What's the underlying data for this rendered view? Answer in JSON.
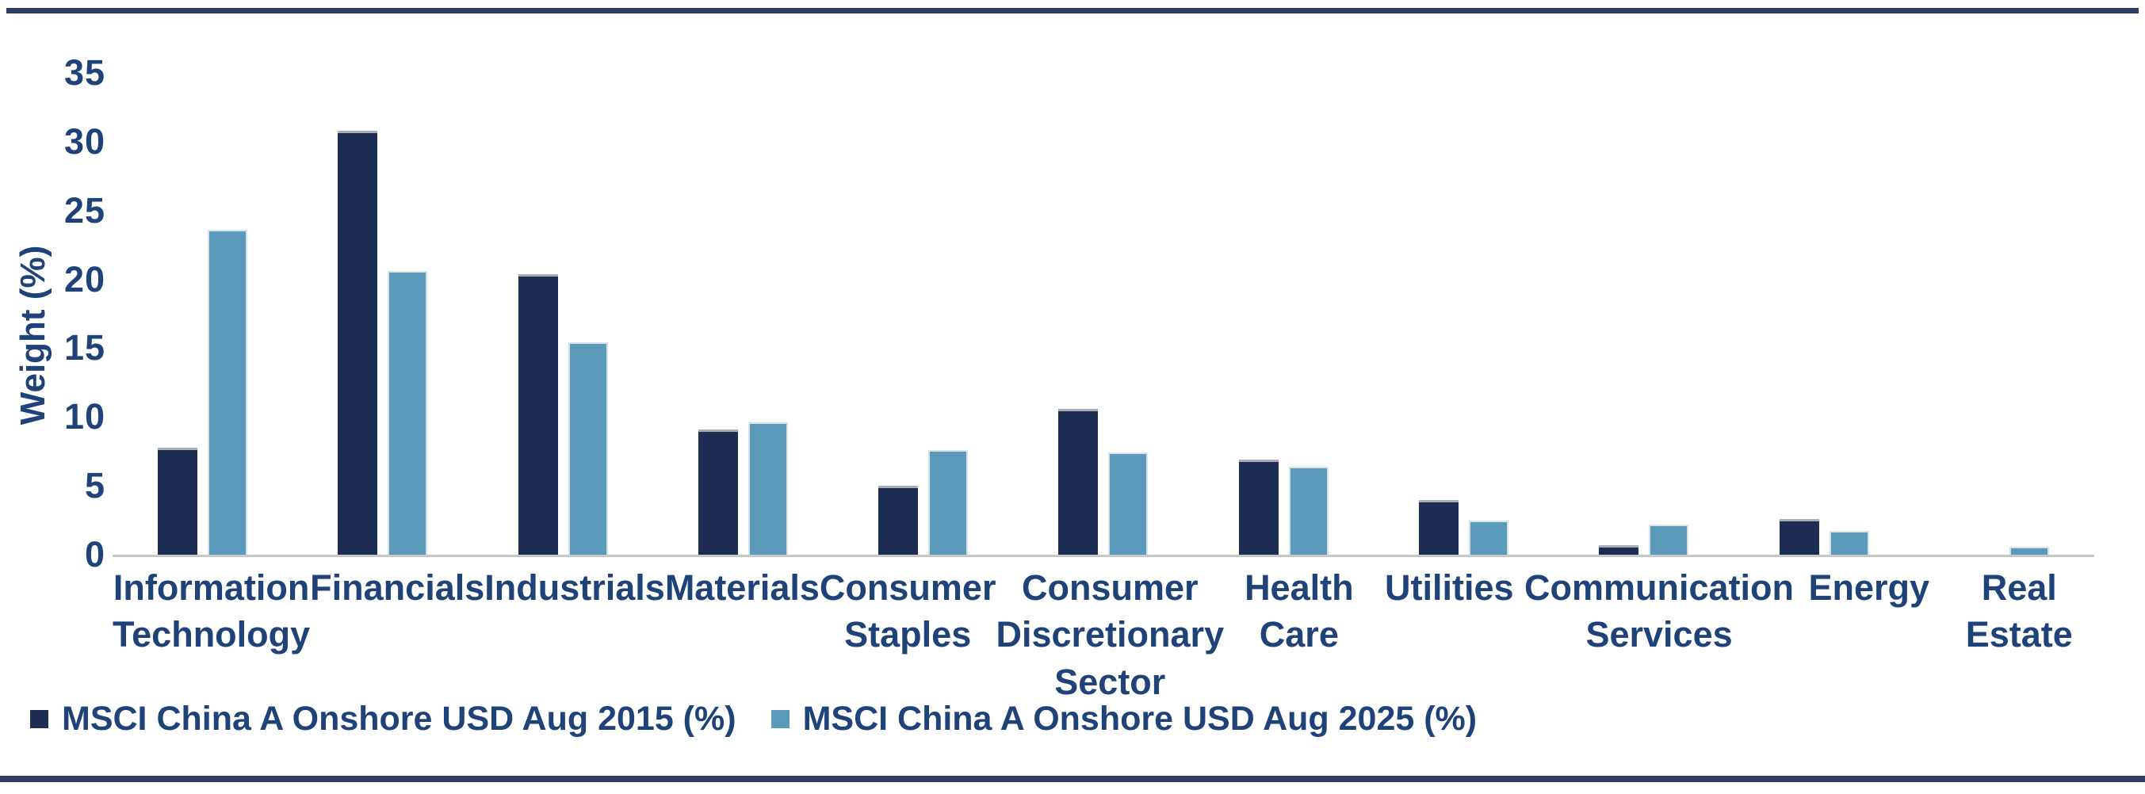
{
  "colors": {
    "bar_2015": "#1d2c52",
    "bar_2025": "#5b9ab9",
    "text": "#1f4278",
    "rule": "#2e3d66",
    "axis_line": "#c7c7c7"
  },
  "legend": {
    "items": [
      {
        "label": "MSCI China A Onshore USD Aug 2015 (%)",
        "swatch": "dark-navy-square"
      },
      {
        "label": "MSCI China A Onshore USD Aug 2025 (%)",
        "swatch": "light-blue-square"
      }
    ]
  },
  "chart_data": {
    "type": "bar",
    "title": "",
    "xlabel": "",
    "ylabel": "Weight (%)",
    "ylim": [
      0,
      35
    ],
    "y_ticks": [
      35,
      30,
      25,
      20,
      15,
      10,
      5,
      0
    ],
    "grid": false,
    "legend_position": "bottom-left",
    "categories": [
      "Information\nTechnology",
      "Financials",
      "Industrials",
      "Materials",
      "Consumer\nStaples",
      "Consumer\nDiscretionary\nSector",
      "Health\nCare",
      "Utilities",
      "Communication\nServices",
      "Energy",
      "Real\nEstate"
    ],
    "series": [
      {
        "name": "MSCI China A Onshore USD Aug 2015 (%)",
        "values": [
          7.8,
          30.8,
          20.4,
          9.1,
          5.0,
          10.6,
          6.9,
          4.0,
          0.7,
          2.6,
          0
        ]
      },
      {
        "name": "MSCI China A Onshore USD Aug 2025 (%)",
        "values": [
          23.6,
          20.6,
          15.4,
          9.6,
          7.6,
          7.4,
          6.4,
          2.5,
          2.2,
          1.7,
          0.6
        ]
      }
    ]
  }
}
